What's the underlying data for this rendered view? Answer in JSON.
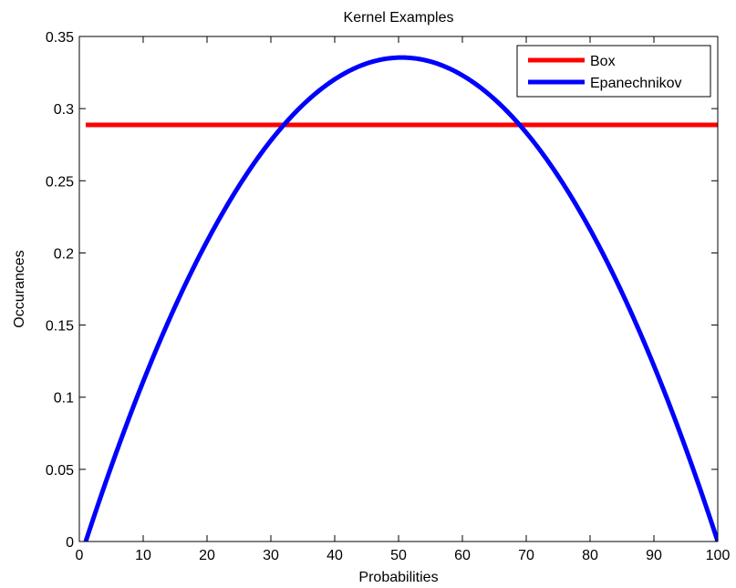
{
  "chart_data": {
    "type": "line",
    "title": "Kernel Examples",
    "xlabel": "Probabilities",
    "ylabel": "Occurances",
    "xlim": [
      0,
      100
    ],
    "ylim": [
      0,
      0.35
    ],
    "xticks": [
      0,
      10,
      20,
      30,
      40,
      50,
      60,
      70,
      80,
      90,
      100
    ],
    "yticks": [
      0,
      0.05,
      0.1,
      0.15,
      0.2,
      0.25,
      0.3,
      0.35
    ],
    "xtick_labels": [
      "0",
      "10",
      "20",
      "30",
      "40",
      "50",
      "60",
      "70",
      "80",
      "90",
      "100"
    ],
    "ytick_labels": [
      "0",
      "0.05",
      "0.1",
      "0.15",
      "0.2",
      "0.25",
      "0.3",
      "0.35"
    ],
    "grid": false,
    "legend_position": "top-right",
    "series": [
      {
        "name": "Box",
        "color": "#ff0000",
        "x": [
          1,
          100
        ],
        "y": [
          0.2887,
          0.2887
        ]
      },
      {
        "name": "Epanechnikov",
        "color": "#0000ff",
        "x": [
          1,
          5,
          10,
          15,
          20,
          25,
          30,
          35,
          40,
          45,
          50.5,
          55,
          60,
          65,
          70,
          75,
          80,
          85,
          90,
          95,
          100
        ],
        "y": [
          0.0,
          0.0522,
          0.1132,
          0.1658,
          0.2097,
          0.2451,
          0.272,
          0.2904,
          0.3001,
          0.3019,
          0.3354,
          0.332,
          0.3217,
          0.3036,
          0.2786,
          0.2464,
          0.2071,
          0.1607,
          0.1073,
          0.0467,
          0.0
        ]
      }
    ]
  }
}
